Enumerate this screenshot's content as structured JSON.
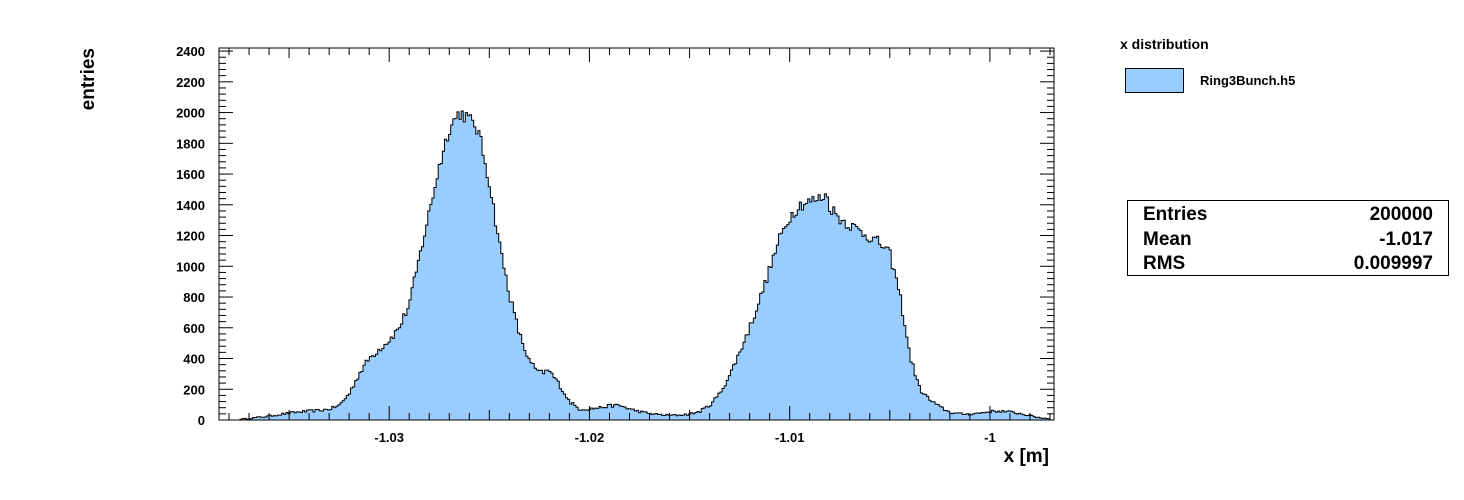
{
  "chart_data": {
    "type": "histogram",
    "title": "",
    "xlabel": "x [m]",
    "ylabel": "entries",
    "xlim": [
      -1.0385,
      -0.9968
    ],
    "ylim": [
      0,
      2420
    ],
    "xticks": [
      -1.03,
      -1.02,
      -1.01,
      -1.0
    ],
    "xtick_labels": [
      "-1.03",
      "-1.02",
      "-1.01",
      "-1"
    ],
    "yticks": [
      0,
      200,
      400,
      600,
      800,
      1000,
      1200,
      1400,
      1600,
      1800,
      2000,
      2200,
      2400
    ],
    "fill_color": "#99ccff",
    "line_color": "#000000",
    "series": [
      {
        "name": "Ring3Bunch.h5",
        "x": [
          -1.0375,
          -1.037,
          -1.0365,
          -1.036,
          -1.0355,
          -1.035,
          -1.0345,
          -1.034,
          -1.0335,
          -1.033,
          -1.0325,
          -1.032,
          -1.0315,
          -1.031,
          -1.0305,
          -1.03,
          -1.0295,
          -1.029,
          -1.0285,
          -1.028,
          -1.0275,
          -1.027,
          -1.0265,
          -1.0262,
          -1.026,
          -1.0257,
          -1.0255,
          -1.025,
          -1.0245,
          -1.024,
          -1.0235,
          -1.023,
          -1.0225,
          -1.022,
          -1.0215,
          -1.021,
          -1.0205,
          -1.02,
          -1.0195,
          -1.019,
          -1.0185,
          -1.018,
          -1.0175,
          -1.017,
          -1.0165,
          -1.016,
          -1.0155,
          -1.015,
          -1.0145,
          -1.014,
          -1.0135,
          -1.013,
          -1.0125,
          -1.012,
          -1.0115,
          -1.011,
          -1.0105,
          -1.01,
          -1.0095,
          -1.009,
          -1.0085,
          -1.0082,
          -1.008,
          -1.0075,
          -1.007,
          -1.0065,
          -1.006,
          -1.0055,
          -1.005,
          -1.0045,
          -1.004,
          -1.0035,
          -1.003,
          -1.0025,
          -1.002,
          -1.0015,
          -1.001,
          -1.0005,
          -1.0,
          -0.9995,
          -0.999,
          -0.9985,
          -0.998,
          -0.9975,
          -0.997
        ],
        "values": [
          5,
          10,
          18,
          25,
          35,
          45,
          52,
          58,
          62,
          70,
          95,
          170,
          300,
          400,
          460,
          520,
          600,
          750,
          1050,
          1350,
          1650,
          1900,
          2000,
          1980,
          1950,
          1920,
          1850,
          1550,
          1150,
          820,
          560,
          380,
          305,
          320,
          230,
          120,
          70,
          72,
          80,
          92,
          95,
          72,
          55,
          42,
          35,
          30,
          32,
          38,
          55,
          95,
          170,
          290,
          440,
          600,
          780,
          980,
          1180,
          1320,
          1400,
          1420,
          1440,
          1470,
          1390,
          1310,
          1270,
          1230,
          1190,
          1150,
          1080,
          820,
          420,
          200,
          130,
          85,
          50,
          40,
          38,
          45,
          55,
          58,
          52,
          42,
          28,
          15,
          8
        ]
      }
    ],
    "legend": {
      "title": "x distribution",
      "placement": "top-right"
    },
    "stats": [
      {
        "key": "Entries",
        "value": "200000"
      },
      {
        "key": "Mean",
        "value": "-1.017"
      },
      {
        "key": "RMS",
        "value": "0.009997"
      }
    ]
  }
}
